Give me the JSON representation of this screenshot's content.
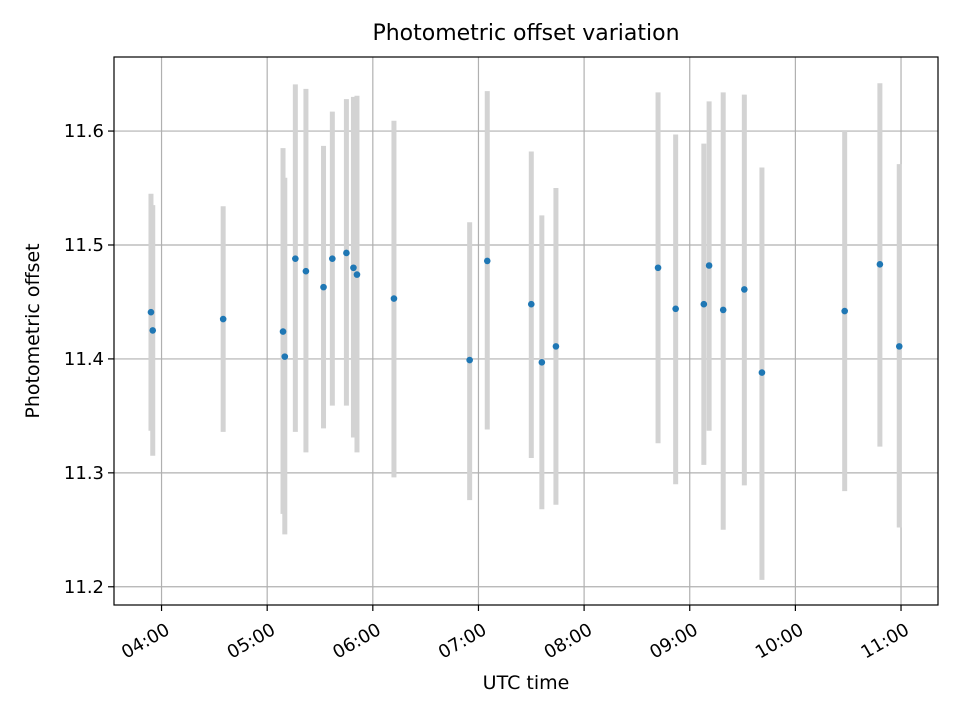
{
  "chart_data": {
    "type": "scatter",
    "title": "Photometric offset variation",
    "xlabel": "UTC time",
    "ylabel": "Photometric offset",
    "x_ticks": [
      "04:00",
      "05:00",
      "06:00",
      "07:00",
      "08:00",
      "09:00",
      "10:00",
      "11:00"
    ],
    "y_ticks": [
      11.2,
      11.3,
      11.4,
      11.5,
      11.6
    ],
    "xlim": [
      "03:33",
      "11:21"
    ],
    "ylim": [
      11.184,
      11.665
    ],
    "grid": true,
    "point_color": "#1f77b4",
    "errorbar_color": "#d3d3d3",
    "points": [
      {
        "x": "03:54",
        "y": 11.441,
        "ylow": 11.337,
        "yhigh": 11.545
      },
      {
        "x": "03:55",
        "y": 11.425,
        "ylow": 11.315,
        "yhigh": 11.535
      },
      {
        "x": "04:35",
        "y": 11.435,
        "ylow": 11.336,
        "yhigh": 11.534
      },
      {
        "x": "05:09",
        "y": 11.424,
        "ylow": 11.264,
        "yhigh": 11.585
      },
      {
        "x": "05:10",
        "y": 11.402,
        "ylow": 11.246,
        "yhigh": 11.559
      },
      {
        "x": "05:16",
        "y": 11.488,
        "ylow": 11.336,
        "yhigh": 11.641
      },
      {
        "x": "05:22",
        "y": 11.477,
        "ylow": 11.318,
        "yhigh": 11.637
      },
      {
        "x": "05:32",
        "y": 11.463,
        "ylow": 11.339,
        "yhigh": 11.587
      },
      {
        "x": "05:37",
        "y": 11.488,
        "ylow": 11.359,
        "yhigh": 11.617
      },
      {
        "x": "05:45",
        "y": 11.493,
        "ylow": 11.359,
        "yhigh": 11.628
      },
      {
        "x": "05:49",
        "y": 11.48,
        "ylow": 11.331,
        "yhigh": 11.63
      },
      {
        "x": "05:51",
        "y": 11.474,
        "ylow": 11.318,
        "yhigh": 11.631
      },
      {
        "x": "06:12",
        "y": 11.453,
        "ylow": 11.296,
        "yhigh": 11.609
      },
      {
        "x": "06:55",
        "y": 11.399,
        "ylow": 11.276,
        "yhigh": 11.52
      },
      {
        "x": "07:05",
        "y": 11.486,
        "ylow": 11.338,
        "yhigh": 11.635
      },
      {
        "x": "07:30",
        "y": 11.448,
        "ylow": 11.313,
        "yhigh": 11.582
      },
      {
        "x": "07:36",
        "y": 11.397,
        "ylow": 11.268,
        "yhigh": 11.526
      },
      {
        "x": "07:44",
        "y": 11.411,
        "ylow": 11.272,
        "yhigh": 11.55
      },
      {
        "x": "08:42",
        "y": 11.48,
        "ylow": 11.326,
        "yhigh": 11.634
      },
      {
        "x": "08:52",
        "y": 11.444,
        "ylow": 11.29,
        "yhigh": 11.597
      },
      {
        "x": "09:08",
        "y": 11.448,
        "ylow": 11.307,
        "yhigh": 11.589
      },
      {
        "x": "09:11",
        "y": 11.482,
        "ylow": 11.337,
        "yhigh": 11.626
      },
      {
        "x": "09:19",
        "y": 11.443,
        "ylow": 11.25,
        "yhigh": 11.634
      },
      {
        "x": "09:31",
        "y": 11.461,
        "ylow": 11.289,
        "yhigh": 11.632
      },
      {
        "x": "09:41",
        "y": 11.388,
        "ylow": 11.206,
        "yhigh": 11.568
      },
      {
        "x": "10:28",
        "y": 11.442,
        "ylow": 11.284,
        "yhigh": 11.6
      },
      {
        "x": "10:48",
        "y": 11.483,
        "ylow": 11.323,
        "yhigh": 11.642
      },
      {
        "x": "10:59",
        "y": 11.411,
        "ylow": 11.252,
        "yhigh": 11.571
      }
    ]
  }
}
